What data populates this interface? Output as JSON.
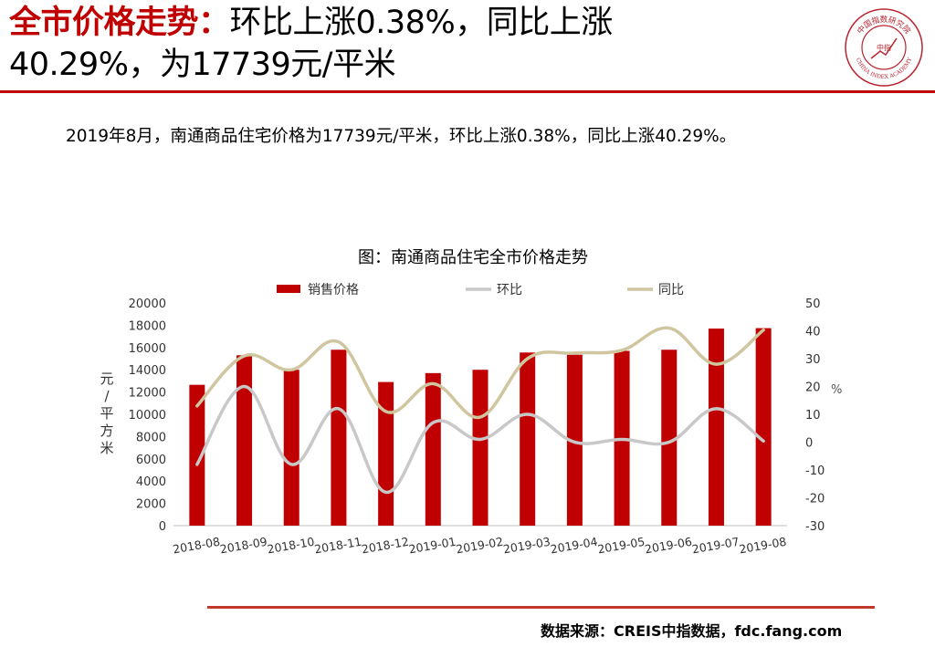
{
  "headline": {
    "red_part": "全市价格走势：",
    "line1_rest": "环比上涨0.38%，同比上涨",
    "line2": "40.29%，为17739元/平米"
  },
  "logo": {
    "top_text": "中国指数研究院",
    "center_text": "中指",
    "bottom_text": "CHINA INDEX ACADEMY"
  },
  "summary": "2019年8月，南通商品住宅价格为17739元/平米，环比上涨0.38%，同比上涨40.29%。",
  "source": "数据来源：CREIS中指数据，fdc.fang.com",
  "colors": {
    "accent_red": "#c00000",
    "bar_red": "#c00000",
    "mom_gray": "#c8c8c8",
    "yoy_tan": "#cfc6a0"
  },
  "chart_data": {
    "type": "bar",
    "title": "图：南通商品住宅全市价格走势",
    "ylabel": "元/平方米",
    "y2label": "%",
    "categories": [
      "2018-08",
      "2018-09",
      "2018-10",
      "2018-11",
      "2018-12",
      "2019-01",
      "2019-02",
      "2019-03",
      "2019-04",
      "2019-05",
      "2019-06",
      "2019-07",
      "2019-08"
    ],
    "ylim": [
      0,
      20000
    ],
    "y_ticks": [
      "0",
      "2000",
      "4000",
      "6000",
      "8000",
      "10000",
      "12000",
      "14000",
      "16000",
      "18000",
      "20000"
    ],
    "y2lim": [
      -30,
      50
    ],
    "y2_ticks": [
      "-30",
      "-20",
      "-10",
      "0",
      "10",
      "20",
      "30",
      "40",
      "50"
    ],
    "legend_position": "top",
    "series": [
      {
        "name": "销售价格",
        "type": "bar",
        "axis": "left",
        "values": [
          12650,
          15300,
          14000,
          15800,
          12900,
          13700,
          14000,
          15550,
          15350,
          15700,
          15800,
          17700,
          17739
        ]
      },
      {
        "name": "环比",
        "type": "line",
        "axis": "right",
        "values": [
          -8,
          20,
          -8,
          12,
          -18,
          7,
          1,
          10,
          0,
          1,
          0,
          12,
          0.38
        ]
      },
      {
        "name": "同比",
        "type": "line",
        "axis": "right",
        "values": [
          13,
          31,
          26,
          36,
          11,
          21,
          9,
          30,
          32,
          33,
          41,
          28,
          40.29
        ]
      }
    ]
  }
}
